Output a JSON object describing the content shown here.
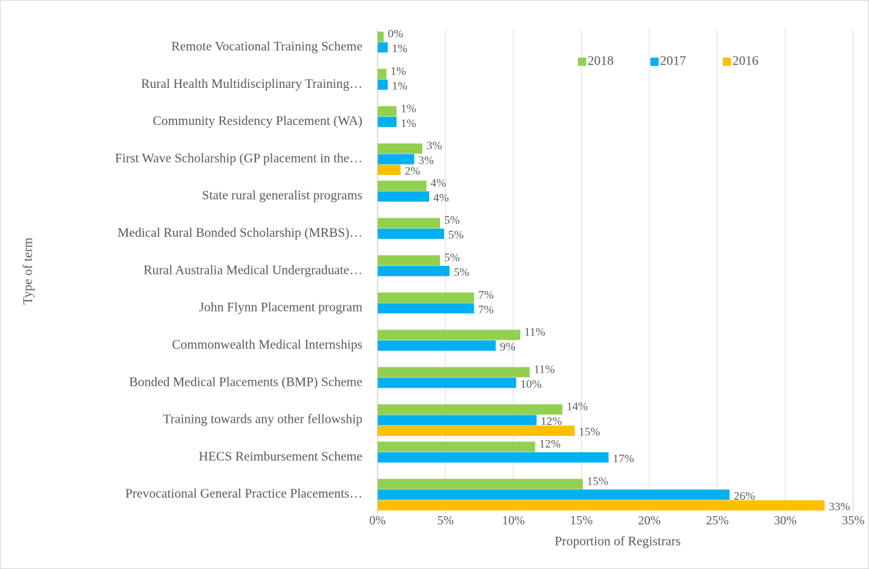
{
  "chart_data": {
    "type": "barh",
    "x_label": "Proportion of Registrars",
    "y_label": "Type of term",
    "categories": [
      "Remote Vocational Training Scheme",
      "Rural Health Multidisciplinary Training…",
      "Community Residency Placement (WA)",
      "First Wave Scholarship (GP placement in the…",
      "State rural generalist programs",
      "Medical Rural Bonded Scholarship (MRBS)…",
      "Rural Australia Medical Undergraduate…",
      "John Flynn Placement program",
      "Commonwealth Medical Internships",
      "Bonded Medical Placements (BMP) Scheme",
      "Training towards any other fellowship",
      "HECS Reimbursement Scheme",
      "Prevocational General Practice Placements…"
    ],
    "series": [
      {
        "name": "2018",
        "color": "#92d050",
        "values": [
          0.45,
          0.65,
          1.4,
          3.3,
          3.6,
          4.6,
          4.6,
          7.1,
          10.5,
          11.2,
          13.6,
          11.6,
          15.1
        ],
        "value_labels": [
          "0%",
          "1%",
          "1%",
          "3%",
          "4%",
          "5%",
          "5%",
          "7%",
          "11%",
          "11%",
          "14%",
          "12%",
          "15%"
        ]
      },
      {
        "name": "2017",
        "color": "#00b0f0",
        "values": [
          0.75,
          0.75,
          1.4,
          2.7,
          3.8,
          4.9,
          5.3,
          7.1,
          8.7,
          10.2,
          11.7,
          17.0,
          25.9
        ],
        "value_labels": [
          "1%",
          "1%",
          "1%",
          "3%",
          "4%",
          "5%",
          "5%",
          "7%",
          "9%",
          "10%",
          "12%",
          "17%",
          "26%"
        ]
      },
      {
        "name": "2016",
        "color": "#ffc000",
        "values": [
          null,
          null,
          null,
          1.7,
          null,
          null,
          null,
          null,
          null,
          null,
          14.5,
          null,
          32.9
        ],
        "value_labels": [
          null,
          null,
          null,
          "2%",
          null,
          null,
          null,
          null,
          null,
          null,
          "15%",
          null,
          "33%"
        ]
      }
    ],
    "xlim": [
      0,
      35
    ],
    "xticks": [
      {
        "value": 0,
        "label": "0%"
      },
      {
        "value": 5,
        "label": "5%"
      },
      {
        "value": 10,
        "label": "10%"
      },
      {
        "value": 15,
        "label": "15%"
      },
      {
        "value": 20,
        "label": "20%"
      },
      {
        "value": 25,
        "label": "25%"
      },
      {
        "value": 30,
        "label": "30%"
      },
      {
        "value": 35,
        "label": "35%"
      }
    ],
    "grid": true,
    "legend": "top-right"
  }
}
